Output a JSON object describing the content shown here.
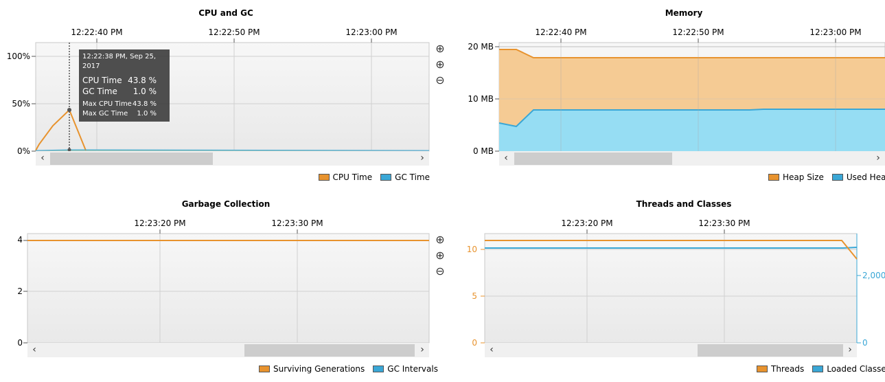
{
  "colors": {
    "orange": "#e8932e",
    "blue": "#3aa7d6",
    "heap_fill": "#f5cb94",
    "used_fill": "#96ddf3"
  },
  "icons": [
    "zoom-in-icon",
    "zoom-in-icon",
    "zoom-out-icon",
    "scroll-left-icon",
    "scroll-right-icon"
  ],
  "cpu_gc": {
    "title": "CPU and GC",
    "times": [
      "12:22:40 PM",
      "12:22:50 PM",
      "12:23:00 PM"
    ],
    "y_ticks": [
      "100%",
      "50%",
      "0%"
    ],
    "legend": [
      "CPU Time",
      "GC Time"
    ],
    "tooltip": {
      "timestamp": "12:22:38 PM, Sep 25, 2017",
      "cpu_label": "CPU Time",
      "cpu_value": "43.8 %",
      "gc_label": "GC Time",
      "gc_value": "1.0 %",
      "max_cpu_label": "Max CPU Time",
      "max_cpu_value": "43.8 %",
      "max_gc_label": "Max GC Time",
      "max_gc_value": "1.0 %"
    }
  },
  "memory": {
    "title": "Memory",
    "times": [
      "12:22:40 PM",
      "12:22:50 PM",
      "12:23:00 PM"
    ],
    "y_ticks": [
      "20 MB",
      "10 MB",
      "0 MB"
    ],
    "legend": [
      "Heap Size",
      "Used Heap"
    ]
  },
  "gc": {
    "title": "Garbage Collection",
    "times": [
      "12:23:20 PM",
      "12:23:30 PM"
    ],
    "y_ticks": [
      "4",
      "2",
      "0"
    ],
    "legend": [
      "Surviving Generations",
      "GC Intervals"
    ]
  },
  "threads": {
    "title": "Threads and Classes",
    "times": [
      "12:23:20 PM",
      "12:23:30 PM"
    ],
    "y_ticks_left": [
      "10",
      "5",
      "0"
    ],
    "y_ticks_right": [
      "2,000",
      "0"
    ],
    "legend": [
      "Threads",
      "Loaded Classes"
    ]
  },
  "chart_data": [
    {
      "type": "line",
      "title": "CPU and GC",
      "x_ticks": [
        "12:22:40 PM",
        "12:22:50 PM",
        "12:23:00 PM"
      ],
      "ylim": [
        0,
        100
      ],
      "series": [
        {
          "name": "CPU Time",
          "x": [
            "12:22:33 PM",
            "12:22:34 PM",
            "12:22:36 PM",
            "12:22:38 PM",
            "12:22:39 PM"
          ],
          "values": [
            0,
            0,
            27,
            43.8,
            0
          ]
        },
        {
          "name": "GC Time",
          "x": [
            "12:22:33 PM",
            "12:22:38 PM",
            "12:23:07 PM"
          ],
          "values": [
            0,
            1.0,
            0
          ]
        }
      ]
    },
    {
      "type": "area",
      "title": "Memory",
      "x_ticks": [
        "12:22:40 PM",
        "12:22:50 PM",
        "12:23:00 PM"
      ],
      "ylim": [
        0,
        20
      ],
      "series": [
        {
          "name": "Heap Size",
          "x": [
            "12:22:35 PM",
            "12:22:36 PM",
            "12:22:37 PM",
            "12:23:03 PM"
          ],
          "values": [
            19.5,
            19.5,
            17.9,
            17.9
          ]
        },
        {
          "name": "Used Heap",
          "x": [
            "12:22:35 PM",
            "12:22:36 PM",
            "12:22:37 PM",
            "12:22:54 PM",
            "12:22:55 PM",
            "12:23:03 PM"
          ],
          "values": [
            5.4,
            4.7,
            7.9,
            7.9,
            8.0,
            8.0
          ]
        }
      ]
    },
    {
      "type": "line",
      "title": "Garbage Collection",
      "x_ticks": [
        "12:23:20 PM",
        "12:23:30 PM"
      ],
      "ylim": [
        0,
        4
      ],
      "series": [
        {
          "name": "Surviving Generations",
          "x": [
            "12:23:10 PM",
            "12:23:40 PM"
          ],
          "values": [
            4,
            4
          ]
        }
      ]
    },
    {
      "type": "line",
      "title": "Threads and Classes",
      "x_ticks": [
        "12:23:20 PM",
        "12:23:30 PM"
      ],
      "ylim": [
        0,
        11
      ],
      "y2lim": [
        0,
        2600
      ],
      "series": [
        {
          "name": "Threads",
          "x": [
            "12:23:14 PM",
            "12:23:40 PM",
            "12:23:41 PM"
          ],
          "values": [
            11,
            11,
            9
          ]
        },
        {
          "name": "Loaded Classes",
          "x": [
            "12:23:14 PM",
            "12:23:40 PM",
            "12:23:41 PM"
          ],
          "values": [
            2300,
            2300,
            2330
          ]
        }
      ]
    }
  ]
}
